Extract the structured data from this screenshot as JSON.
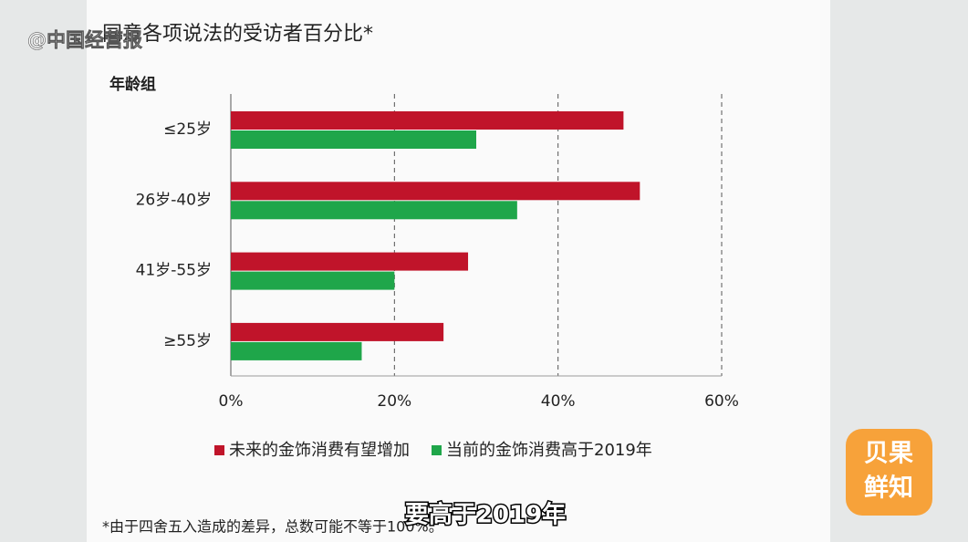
{
  "chart_data": {
    "type": "hbar",
    "title": "同意各项说法的受访者百分比*",
    "y_label": "年龄组",
    "categories": [
      "≤25岁",
      "26岁-40岁",
      "41岁-55岁",
      "≥55岁"
    ],
    "series": [
      {
        "name": "未来的金饰消费有望增加",
        "color": "#c0142a",
        "values": [
          48,
          50,
          29,
          26
        ]
      },
      {
        "name": "当前的金饰消费高于2019年",
        "color": "#1fa64a",
        "values": [
          30,
          35,
          20,
          16
        ]
      }
    ],
    "xlim": [
      0,
      60
    ],
    "xticks": [
      {
        "value": 0,
        "label": "0%"
      },
      {
        "value": 20,
        "label": "20%"
      },
      {
        "value": 40,
        "label": "40%"
      },
      {
        "value": 60,
        "label": "60%"
      }
    ],
    "grid": true,
    "legend": "bottom",
    "footnote": "*由于四舍五入造成的差异，总数可能不等于100%。"
  },
  "watermark": "@中国经营报",
  "caption": "要高于2019年",
  "logo": [
    "贝果",
    "鲜知"
  ]
}
